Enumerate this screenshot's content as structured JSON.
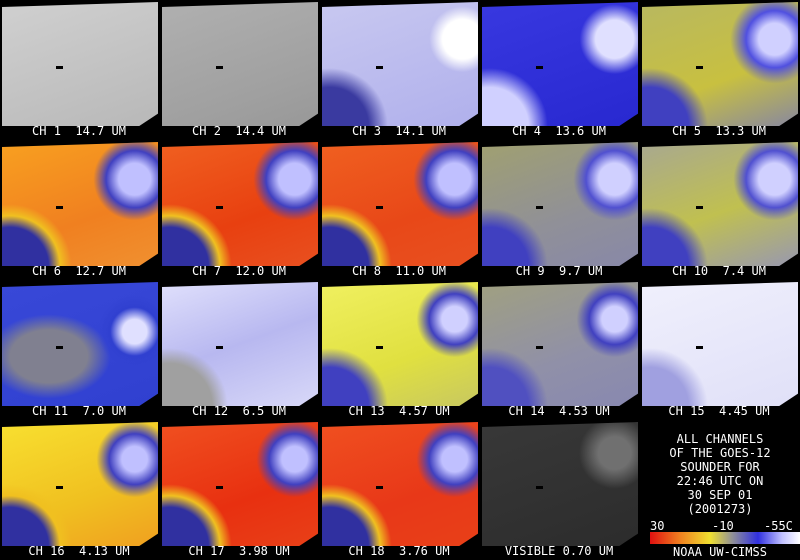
{
  "panels": [
    "CH 1  14.7 UM",
    "CH 2  14.4 UM",
    "CH 3  14.1 UM",
    "CH 4  13.6 UM",
    "CH 5  13.3 UM",
    "CH 6  12.7 UM",
    "CH 7  12.0 UM",
    "CH 8  11.0 UM",
    "CH 9  9.7 UM",
    "CH 10  7.4 UM",
    "CH 11  7.0 UM",
    "CH 12  6.5 UM",
    "CH 13  4.57 UM",
    "CH 14  4.53 UM",
    "CH 15  4.45 UM",
    "CH 16  4.13 UM",
    "CH 17  3.98 UM",
    "CH 18  3.76 UM",
    "VISIBLE 0.70 UM"
  ],
  "info": {
    "lines": [
      "ALL CHANNELS",
      "OF THE GOES-12",
      "SOUNDER FOR",
      "22:46 UTC ON",
      "30 SEP 01",
      "(2001273)"
    ],
    "colorbar_labels": [
      "30",
      "-10",
      "-55C"
    ],
    "credit": "NOAA UW-CIMSS"
  }
}
